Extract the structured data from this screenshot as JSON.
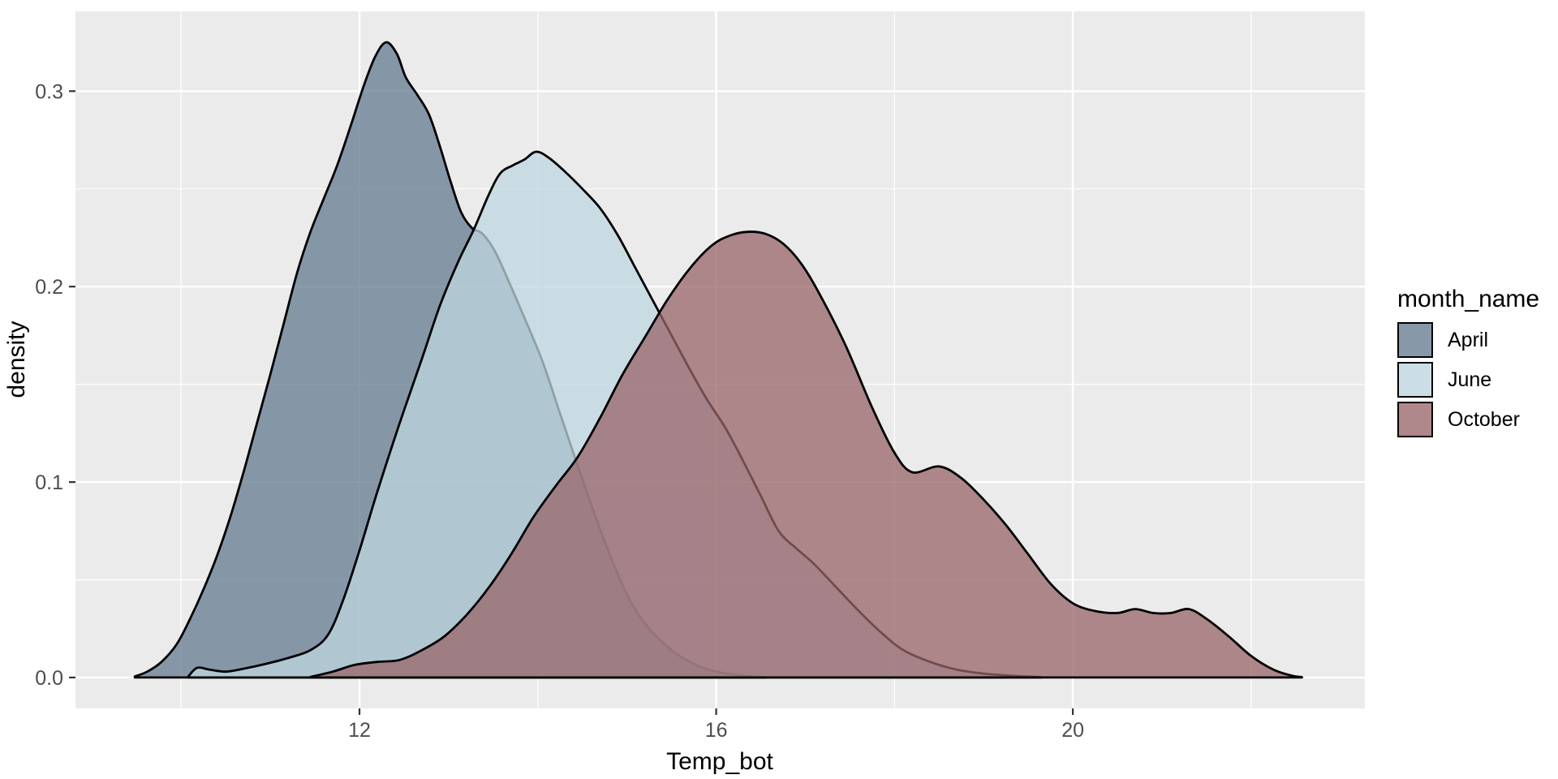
{
  "chart_data": {
    "type": "area",
    "variant": "overlapping-density-curves",
    "title": "",
    "xlabel": "Temp_bot",
    "ylabel": "density",
    "grid": true,
    "x_axis": {
      "lim": [
        8.815,
        23.275
      ],
      "ticks": [
        {
          "label": "12",
          "value": 12
        },
        {
          "label": "16",
          "value": 16
        },
        {
          "label": "20",
          "value": 20
        }
      ],
      "minor": [
        10,
        14,
        18,
        22
      ]
    },
    "y_axis": {
      "lim": [
        -0.0158,
        0.3408
      ],
      "ticks": [
        {
          "label": "0.0",
          "value": 0.0
        },
        {
          "label": "0.1",
          "value": 0.1
        },
        {
          "label": "0.2",
          "value": 0.2
        },
        {
          "label": "0.3",
          "value": 0.3
        }
      ],
      "minor": [
        0.05,
        0.15,
        0.25
      ]
    },
    "legend": {
      "title": "month_name",
      "position": "right",
      "entries": [
        "April",
        "June",
        "October"
      ]
    },
    "style": {
      "panel_bg": "#EBEBEB",
      "grid_color": "#FFFFFF",
      "fill_opacity": 0.75,
      "stroke_color": "#000000",
      "tick_color": "#333333",
      "tick_label_color": "#4D4D4D",
      "axis_title_color": "#000000",
      "legend_key_bg": "#F2F2F2"
    },
    "series": [
      {
        "name": "April",
        "fill": "#637990",
        "peak": {
          "x": 12.3,
          "density": 0.325
        },
        "points": [
          [
            9.48,
            0.0005
          ],
          [
            9.62,
            0.003
          ],
          [
            9.78,
            0.008
          ],
          [
            9.95,
            0.017
          ],
          [
            10.1,
            0.03
          ],
          [
            10.25,
            0.045
          ],
          [
            10.4,
            0.062
          ],
          [
            10.55,
            0.082
          ],
          [
            10.7,
            0.105
          ],
          [
            10.85,
            0.13
          ],
          [
            11.0,
            0.155
          ],
          [
            11.15,
            0.181
          ],
          [
            11.3,
            0.207
          ],
          [
            11.45,
            0.228
          ],
          [
            11.6,
            0.245
          ],
          [
            11.75,
            0.262
          ],
          [
            11.9,
            0.282
          ],
          [
            12.05,
            0.303
          ],
          [
            12.18,
            0.318
          ],
          [
            12.3,
            0.325
          ],
          [
            12.42,
            0.319
          ],
          [
            12.52,
            0.307
          ],
          [
            12.65,
            0.298
          ],
          [
            12.78,
            0.288
          ],
          [
            12.9,
            0.272
          ],
          [
            13.02,
            0.254
          ],
          [
            13.14,
            0.238
          ],
          [
            13.26,
            0.23
          ],
          [
            13.38,
            0.227
          ],
          [
            13.52,
            0.218
          ],
          [
            13.68,
            0.202
          ],
          [
            13.85,
            0.184
          ],
          [
            14.05,
            0.162
          ],
          [
            14.25,
            0.135
          ],
          [
            14.45,
            0.108
          ],
          [
            14.65,
            0.082
          ],
          [
            14.85,
            0.058
          ],
          [
            15.05,
            0.038
          ],
          [
            15.25,
            0.025
          ],
          [
            15.5,
            0.014
          ],
          [
            15.75,
            0.007
          ],
          [
            16.0,
            0.003
          ],
          [
            16.3,
            0.001
          ],
          [
            16.55,
            0.0002
          ]
        ]
      },
      {
        "name": "June",
        "fill": "#BFD7E0",
        "peak": {
          "x": 13.98,
          "density": 0.269
        },
        "points": [
          [
            10.08,
            0.0005
          ],
          [
            10.18,
            0.005
          ],
          [
            10.32,
            0.004
          ],
          [
            10.5,
            0.003
          ],
          [
            10.7,
            0.0045
          ],
          [
            10.95,
            0.007
          ],
          [
            11.2,
            0.01
          ],
          [
            11.45,
            0.014
          ],
          [
            11.65,
            0.022
          ],
          [
            11.82,
            0.04
          ],
          [
            12.0,
            0.065
          ],
          [
            12.2,
            0.095
          ],
          [
            12.45,
            0.13
          ],
          [
            12.7,
            0.163
          ],
          [
            12.9,
            0.19
          ],
          [
            13.1,
            0.212
          ],
          [
            13.28,
            0.229
          ],
          [
            13.45,
            0.247
          ],
          [
            13.58,
            0.258
          ],
          [
            13.72,
            0.262
          ],
          [
            13.85,
            0.265
          ],
          [
            13.98,
            0.269
          ],
          [
            14.12,
            0.266
          ],
          [
            14.3,
            0.259
          ],
          [
            14.5,
            0.25
          ],
          [
            14.7,
            0.24
          ],
          [
            14.9,
            0.226
          ],
          [
            15.1,
            0.209
          ],
          [
            15.3,
            0.192
          ],
          [
            15.5,
            0.175
          ],
          [
            15.7,
            0.158
          ],
          [
            15.9,
            0.142
          ],
          [
            16.1,
            0.128
          ],
          [
            16.3,
            0.111
          ],
          [
            16.5,
            0.093
          ],
          [
            16.7,
            0.075
          ],
          [
            16.9,
            0.066
          ],
          [
            17.1,
            0.058
          ],
          [
            17.35,
            0.046
          ],
          [
            17.6,
            0.034
          ],
          [
            17.85,
            0.023
          ],
          [
            18.1,
            0.014
          ],
          [
            18.4,
            0.008
          ],
          [
            18.7,
            0.004
          ],
          [
            19.0,
            0.002
          ],
          [
            19.35,
            0.0008
          ],
          [
            19.65,
            0.0002
          ]
        ]
      },
      {
        "name": "October",
        "fill": "#986468",
        "peak": {
          "x": 16.4,
          "density": 0.228
        },
        "points": [
          [
            11.45,
            0.0003
          ],
          [
            11.7,
            0.003
          ],
          [
            11.95,
            0.0065
          ],
          [
            12.2,
            0.008
          ],
          [
            12.45,
            0.009
          ],
          [
            12.7,
            0.014
          ],
          [
            12.95,
            0.021
          ],
          [
            13.2,
            0.032
          ],
          [
            13.45,
            0.046
          ],
          [
            13.7,
            0.063
          ],
          [
            13.95,
            0.082
          ],
          [
            14.2,
            0.098
          ],
          [
            14.45,
            0.113
          ],
          [
            14.7,
            0.133
          ],
          [
            14.95,
            0.155
          ],
          [
            15.2,
            0.174
          ],
          [
            15.45,
            0.193
          ],
          [
            15.7,
            0.209
          ],
          [
            15.95,
            0.221
          ],
          [
            16.15,
            0.226
          ],
          [
            16.35,
            0.228
          ],
          [
            16.55,
            0.227
          ],
          [
            16.75,
            0.222
          ],
          [
            16.95,
            0.212
          ],
          [
            17.15,
            0.197
          ],
          [
            17.45,
            0.17
          ],
          [
            17.75,
            0.138
          ],
          [
            18.0,
            0.115
          ],
          [
            18.2,
            0.105
          ],
          [
            18.5,
            0.108
          ],
          [
            18.75,
            0.102
          ],
          [
            19.0,
            0.091
          ],
          [
            19.25,
            0.078
          ],
          [
            19.5,
            0.063
          ],
          [
            19.75,
            0.048
          ],
          [
            20.0,
            0.038
          ],
          [
            20.25,
            0.034
          ],
          [
            20.5,
            0.033
          ],
          [
            20.7,
            0.035
          ],
          [
            20.9,
            0.033
          ],
          [
            21.1,
            0.033
          ],
          [
            21.3,
            0.035
          ],
          [
            21.5,
            0.03
          ],
          [
            21.75,
            0.021
          ],
          [
            22.0,
            0.011
          ],
          [
            22.25,
            0.004
          ],
          [
            22.45,
            0.001
          ],
          [
            22.57,
            0.0002
          ]
        ]
      }
    ]
  }
}
